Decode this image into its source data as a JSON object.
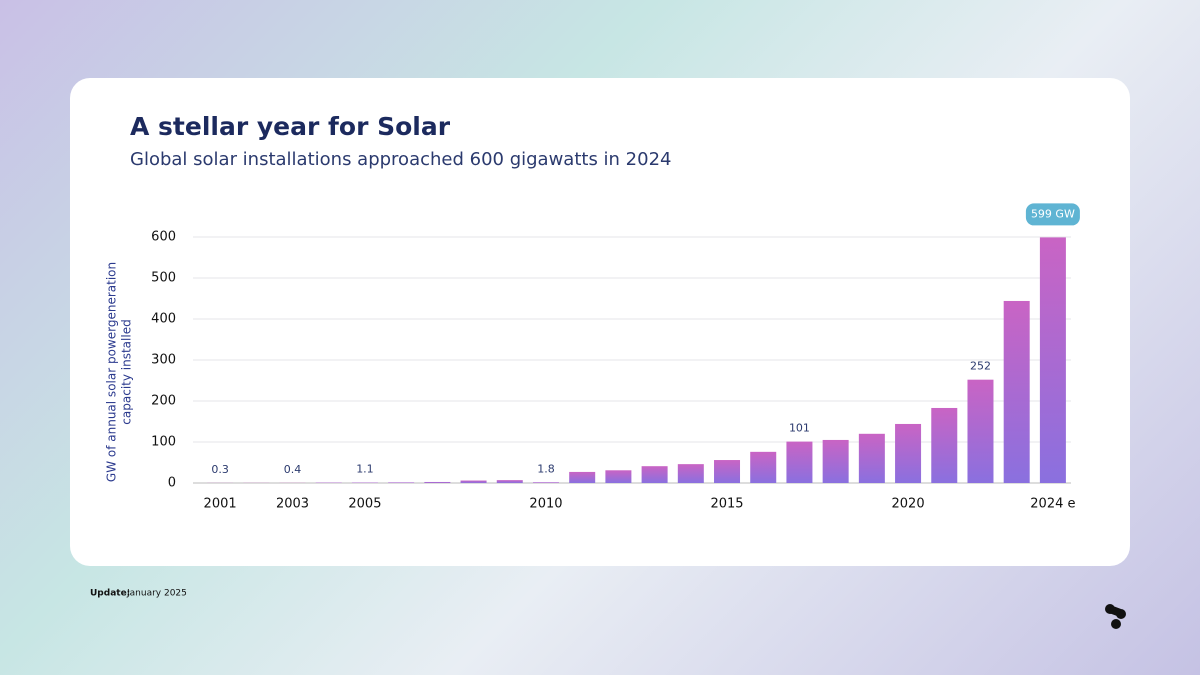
{
  "chart_data": {
    "type": "bar",
    "title": "A stellar year for Solar",
    "subtitle": "Global solar installations approached 600 gigawatts in 2024",
    "ylabel": [
      "GW of annual solar powergeneration",
      "capacity installed"
    ],
    "categories": [
      "2001",
      null,
      "2003",
      null,
      "2005",
      null,
      null,
      null,
      null,
      "2010",
      null,
      null,
      null,
      null,
      "2015",
      null,
      null,
      null,
      null,
      "2020",
      null,
      null,
      null,
      "2024 e"
    ],
    "values": [
      0.3,
      0.35,
      0.4,
      1,
      1.1,
      1.5,
      2.5,
      6,
      7,
      1.8,
      27,
      31,
      41,
      46,
      56,
      76,
      101,
      105,
      120,
      144,
      183,
      252,
      444,
      599
    ],
    "value_labels": [
      "0.3",
      null,
      "0.4",
      null,
      "1.1",
      null,
      null,
      null,
      null,
      "1.8",
      null,
      null,
      null,
      null,
      null,
      null,
      "101",
      null,
      null,
      null,
      null,
      "252",
      null,
      "599 GW"
    ],
    "colors": [
      "#c964c4",
      "#8a70df"
    ],
    "ylim": [
      0,
      600
    ],
    "yticks": [
      0,
      100,
      200,
      300,
      400,
      500,
      600
    ],
    "grid": true,
    "footnote_label": "Update:",
    "footnote": "January 2025"
  }
}
